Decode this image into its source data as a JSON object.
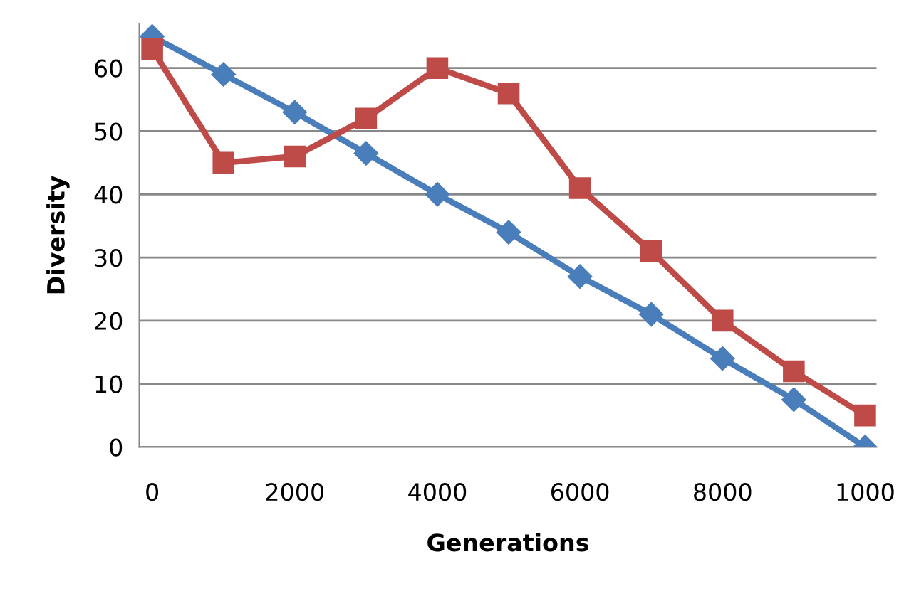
{
  "chart_data": {
    "type": "line",
    "xlabel": "Generations",
    "ylabel": "Diversity",
    "categories": [
      "0",
      null,
      "2000",
      null,
      "4000",
      null,
      "6000",
      null,
      "8000",
      null,
      "1000"
    ],
    "series": [
      {
        "color": "#4a7ebb",
        "marker": "diamond",
        "values": [
          65,
          59,
          53,
          46.5,
          40,
          34,
          27,
          21,
          14,
          7.5,
          0
        ]
      },
      {
        "color": "#be4b48",
        "marker": "square",
        "values": [
          63,
          45,
          46,
          52,
          60,
          56,
          41,
          31,
          20,
          12,
          5
        ]
      }
    ],
    "ylim": [
      0,
      67
    ],
    "yticks": [
      0,
      10,
      20,
      30,
      40,
      50,
      60
    ],
    "grid": "y",
    "line_style": "solid"
  }
}
